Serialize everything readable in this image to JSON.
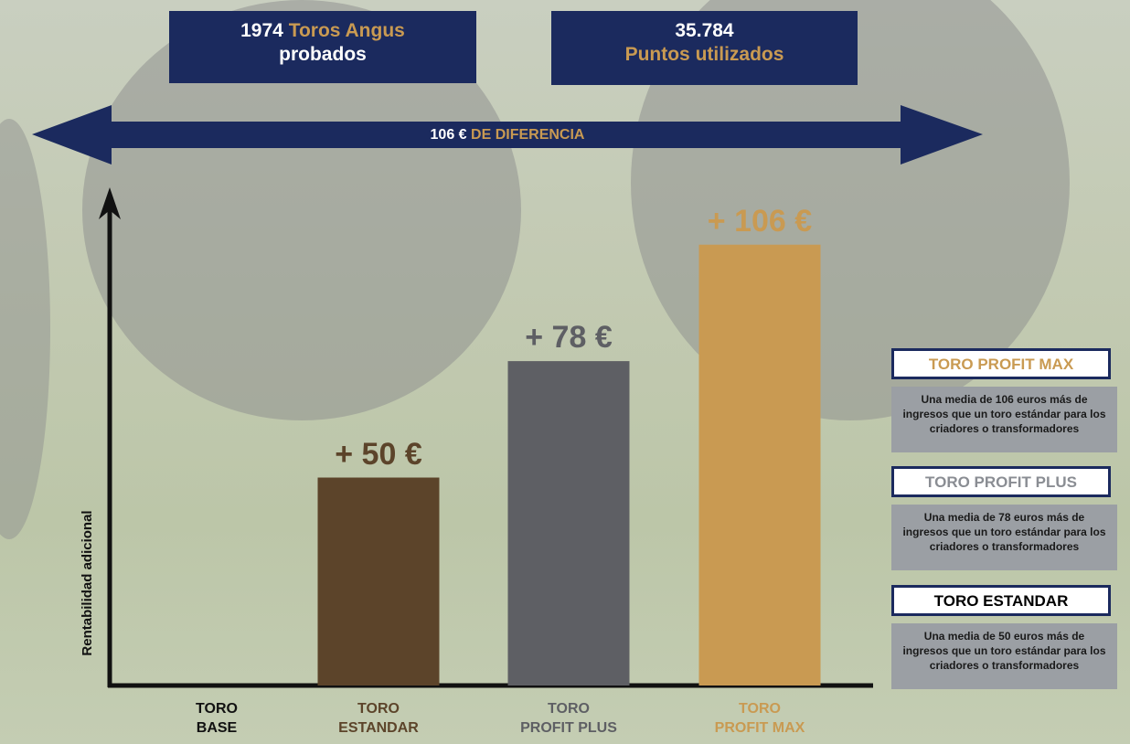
{
  "chart_data": {
    "type": "bar",
    "header": [
      {
        "number": "1974",
        "highlight": "Toros Angus",
        "text": "probados"
      },
      {
        "number": "35.784",
        "highlight": "Puntos utilizados"
      }
    ],
    "difference": {
      "amount": "106 €",
      "text": "DE DIFERENCIA"
    },
    "y_label": "Rentabilidad adicional",
    "categories": [
      "TORO BASE",
      "TORO ESTANDAR",
      "TORO PROFIT PLUS",
      "TORO PROFIT MAX"
    ],
    "values": [
      0,
      50,
      78,
      106
    ],
    "value_labels": [
      null,
      "+ 50 €",
      "+ 78 €",
      "+ 106 €"
    ],
    "colors": [
      "#111111",
      "#5c442a",
      "#5e5f64",
      "#c99a52"
    ],
    "ylim": [
      0,
      120
    ],
    "legend": [
      {
        "title": "TORO PROFIT MAX",
        "text": "Una media de 106 euros más de ingresos que un toro estándar para los criadores o transformadores",
        "color": "#c99a52"
      },
      {
        "title": "TORO PROFIT PLUS",
        "text": "Una media de 78 euros más de ingresos que un toro estándar para los criadores o transformadores",
        "color": "#8a8d93"
      },
      {
        "title": "TORO ESTANDAR",
        "text": "Una media de 50 euros más de ingresos que un toro estándar para los criadores o transformadores",
        "color": "#000000"
      }
    ]
  }
}
